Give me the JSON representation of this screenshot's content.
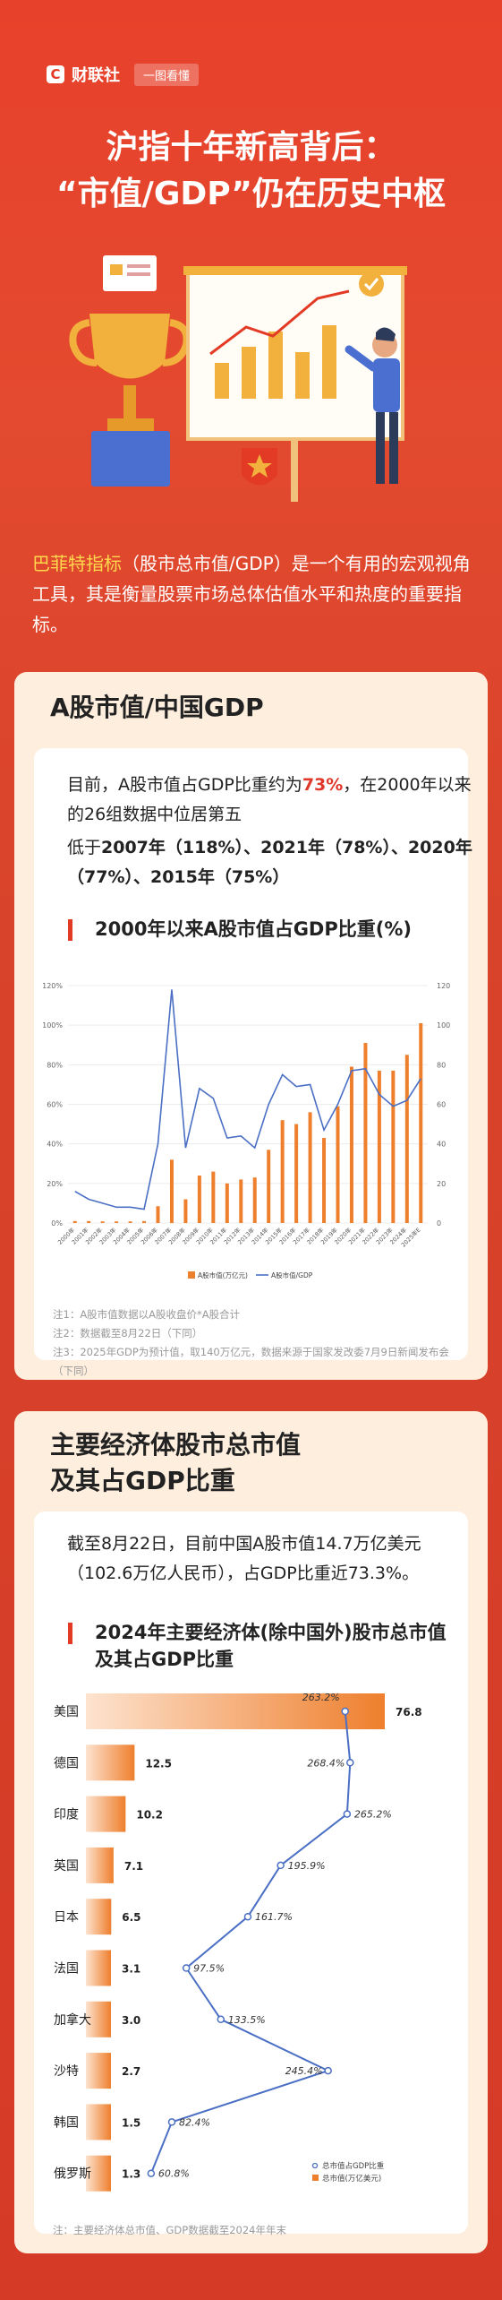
{
  "brand": {
    "name": "财联社",
    "logo_letter": "C",
    "tag": "一图看懂"
  },
  "title": {
    "line1": "沪指十年新高背后：",
    "line2": "“市值/GDP”仍在历史中枢"
  },
  "intro": {
    "highlight": "巴菲特指标",
    "text": "（股市总市值/GDP）是一个有用的宏观视角工具，其是衡量股票市场总体估值水平和热度的重要指标。"
  },
  "section1": {
    "heading": "A股市值/中国GDP",
    "para1_a": "目前，A股市值占GDP比重约为",
    "para1_value": "73%",
    "para1_b": "，在2000年以来的26组数据中位居第五",
    "para2_a": "低于",
    "para2_b": "2007年（118%）、2021年（78%）、2020年（77%）、2015年（75%）",
    "chart_title": "2000年以来A股市值占GDP比重(%)",
    "notes": [
      "注1：A股市值数据以A股收盘价*A股合计",
      "注2：数据截至8月22日（下同）",
      "注3：2025年GDP为预计值，取140万亿元，数据来源于国家发改委7月9日新闻发布会（下同）"
    ]
  },
  "section2": {
    "heading_line1": "主要经济体股市总市值",
    "heading_line2": "及其占GDP比重",
    "para": "截至8月22日，目前中国A股市值14.7万亿美元（102.6万亿人民币），占GDP比重近73.3%。",
    "chart_title_line1": "2024年主要经济体(除中国外)股市总市值",
    "chart_title_line2": "及其占GDP比重",
    "note": "注：主要经济体总市值、GDP数据截至2024年年末"
  },
  "colors": {
    "bar": "#ee7f2d",
    "line": "#4a6fc4",
    "accent": "#e23a25"
  },
  "chart_data": [
    {
      "type": "bar",
      "title": "2000年以来A股市值占GDP比重(%)",
      "categories": [
        "2000年",
        "2001年",
        "2002年",
        "2003年",
        "2004年",
        "2005年",
        "2006年",
        "2007年",
        "2008年",
        "2009年",
        "2010年",
        "2011年",
        "2012年",
        "2013年",
        "2014年",
        "2015年",
        "2016年",
        "2017年",
        "2018年",
        "2019年",
        "2020年",
        "2021年",
        "2022年",
        "2023年",
        "2024年",
        "2025年E"
      ],
      "left_ylim": [
        0,
        120
      ],
      "left_ticks": [
        "0%",
        "20%",
        "40%",
        "60%",
        "80%",
        "100%",
        "120%"
      ],
      "right_ylim": [
        0,
        120
      ],
      "right_ticks": [
        "0",
        "20",
        "40",
        "60",
        "80",
        "100",
        "120"
      ],
      "series": [
        {
          "name": "A股市值(万亿元)",
          "type": "bar",
          "axis": "right",
          "values": [
            1,
            1,
            0.8,
            0.8,
            0.8,
            1,
            8.5,
            32,
            12,
            24,
            26,
            20,
            22,
            23,
            37,
            52,
            50,
            56,
            43,
            59,
            79,
            91,
            77,
            77,
            85,
            101
          ]
        },
        {
          "name": "A股市值/GDP",
          "type": "line",
          "axis": "left",
          "values": [
            16,
            12,
            10,
            8,
            8,
            7,
            40,
            118,
            38,
            68,
            63,
            43,
            44,
            38,
            60,
            75,
            69,
            70,
            47,
            60,
            77,
            78,
            65,
            59,
            62,
            73
          ]
        }
      ],
      "legend": "bottom"
    },
    {
      "type": "bar",
      "orientation": "horizontal",
      "title": "2024年主要经济体(除中国外)股市总市值及其占GDP比重",
      "categories": [
        "美国",
        "德国",
        "印度",
        "英国",
        "日本",
        "法国",
        "加拿大",
        "沙特",
        "韩国",
        "俄罗斯"
      ],
      "series": [
        {
          "name": "总市值(万亿美元)",
          "type": "bar",
          "values": [
            76.8,
            12.5,
            10.2,
            7.1,
            6.5,
            3.1,
            3.0,
            2.7,
            1.5,
            1.3
          ],
          "labels": [
            "76.8",
            "12.5",
            "10.2",
            "7.1",
            "6.5",
            "3.1",
            "3.0",
            "2.7",
            "1.5",
            "1.3"
          ]
        },
        {
          "name": "总市值占GDP比重",
          "type": "line",
          "values": [
            263.2,
            268.4,
            265.2,
            195.9,
            161.7,
            97.5,
            133.5,
            245.4,
            82.4,
            60.8
          ],
          "labels": [
            "263.2%",
            "268.4%",
            "265.2%",
            "195.9%",
            "161.7%",
            "97.5%",
            "133.5%",
            "245.4%",
            "82.4%",
            "60.8%"
          ]
        }
      ],
      "legend": "bottom-right"
    }
  ]
}
